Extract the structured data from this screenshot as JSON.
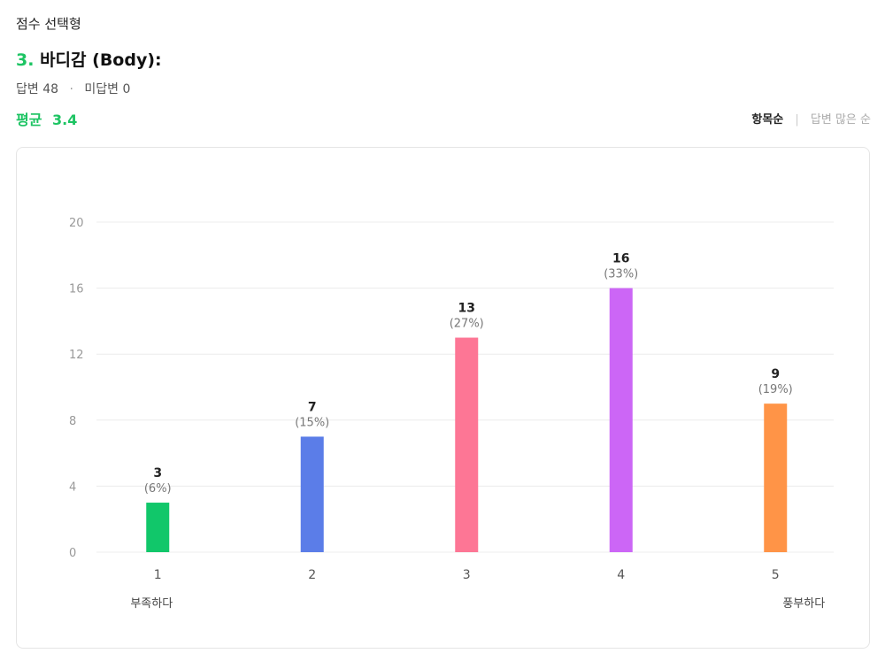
{
  "header": {
    "question_type": "점수 선택형",
    "question_number": "3.",
    "question_text": "바디감 (Body):",
    "answered_label": "답변 48",
    "separator": "·",
    "unanswered_label": "미답변 0",
    "average_label": "평균",
    "average_value": "3.4"
  },
  "sort": {
    "active": "항목순",
    "divider": "|",
    "inactive": "답변 많은 순"
  },
  "colors": {
    "accent": "#1dc463",
    "bar_colors": [
      "#11c76a",
      "#5b7de8",
      "#fd7695",
      "#cc66f6",
      "#ff9447"
    ]
  },
  "chart_data": {
    "type": "bar",
    "categories": [
      "1",
      "2",
      "3",
      "4",
      "5"
    ],
    "values": [
      3,
      7,
      13,
      16,
      9
    ],
    "percent_labels": [
      "(6%)",
      "(15%)",
      "(27%)",
      "(33%)",
      "(19%)"
    ],
    "y_ticks": [
      0,
      4,
      8,
      12,
      16,
      20
    ],
    "ylim": [
      0,
      20
    ],
    "grid": true,
    "left_end_label": "부족하다",
    "right_end_label": "풍부하다"
  }
}
